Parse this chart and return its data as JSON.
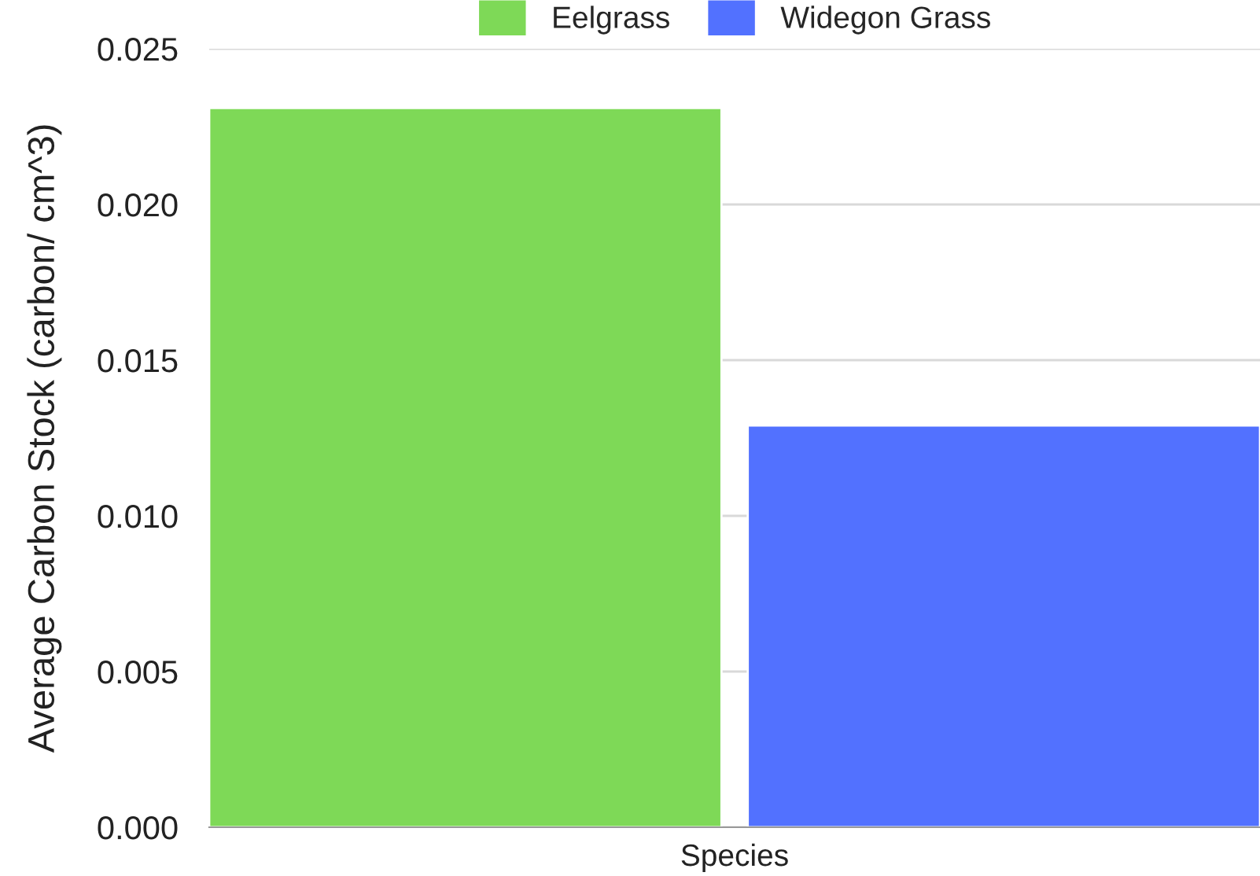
{
  "chart_data": {
    "type": "bar",
    "xlabel": "Species",
    "ylabel": "Average Carbon Stock (carbon/ cm^3)",
    "categories": [
      null
    ],
    "series": [
      {
        "name": "Eelgrass",
        "color": "#7ed957",
        "values": [
          0.0231
        ]
      },
      {
        "name": "Widegon Grass",
        "color": "#5271ff",
        "values": [
          0.0129
        ]
      }
    ],
    "ylim": [
      0,
      0.025
    ],
    "yticks": [
      {
        "value": 0,
        "label": "0.000"
      },
      {
        "value": 0.005,
        "label": "0.005"
      },
      {
        "value": 0.01,
        "label": "0.010"
      },
      {
        "value": 0.015,
        "label": "0.015"
      },
      {
        "value": 0.02,
        "label": "0.020"
      },
      {
        "value": 0.025,
        "label": "0.025"
      }
    ],
    "grid": "y",
    "legend": "top"
  }
}
